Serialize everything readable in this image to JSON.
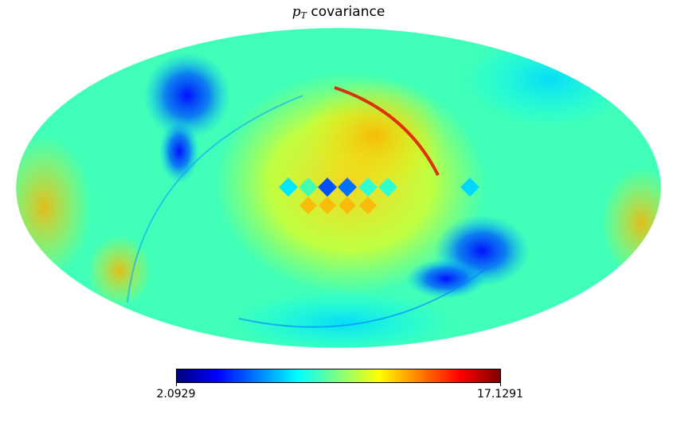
{
  "title": {
    "symbol": "p",
    "subscript": "T",
    "text": " covariance"
  },
  "colorbar": {
    "min_label": "2.0929",
    "max_label": "17.1291",
    "min": 2.0929,
    "max": 17.1291,
    "colormap": "jet",
    "stops": [
      "#00007f",
      "#0000ff",
      "#007fff",
      "#00ffff",
      "#7fff7f",
      "#ffff00",
      "#ff7f00",
      "#ff0000",
      "#7f0000"
    ]
  },
  "map": {
    "projection": "mollweide",
    "background_color": "#40ffb8"
  }
}
